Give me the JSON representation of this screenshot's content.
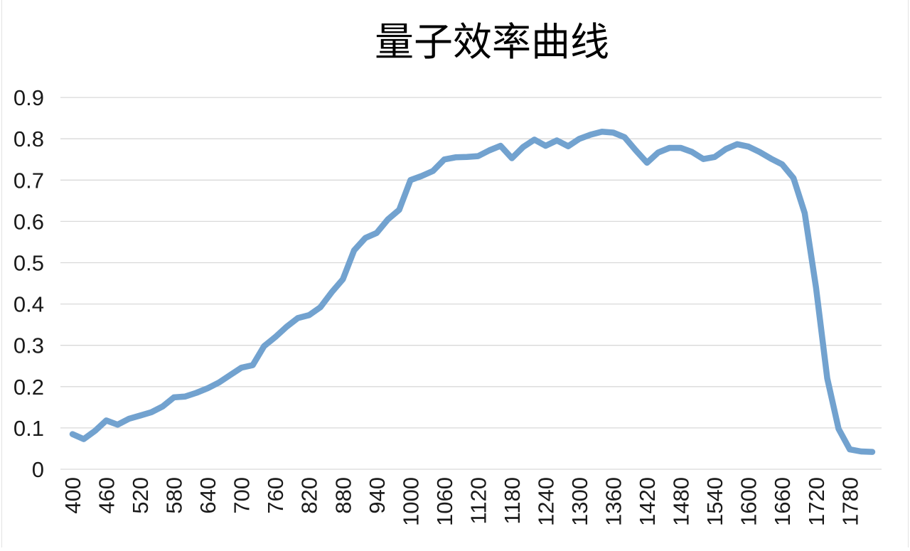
{
  "chart_data": {
    "type": "line",
    "title": "量子效率曲线",
    "xlabel": "",
    "ylabel": "",
    "legend": "none",
    "grid": "horizontal",
    "xlim": [
      400,
      1820
    ],
    "ylim": [
      0,
      0.9
    ],
    "x": [
      400,
      420,
      440,
      460,
      480,
      500,
      520,
      540,
      560,
      580,
      600,
      620,
      640,
      660,
      680,
      700,
      720,
      740,
      760,
      780,
      800,
      820,
      840,
      860,
      880,
      900,
      920,
      940,
      960,
      980,
      1000,
      1020,
      1040,
      1060,
      1080,
      1100,
      1120,
      1140,
      1160,
      1180,
      1200,
      1220,
      1240,
      1260,
      1280,
      1300,
      1320,
      1340,
      1360,
      1380,
      1400,
      1420,
      1440,
      1460,
      1480,
      1500,
      1520,
      1540,
      1560,
      1580,
      1600,
      1620,
      1640,
      1660,
      1680,
      1700,
      1720,
      1740,
      1760,
      1780,
      1800,
      1820
    ],
    "values": [
      0.085,
      0.073,
      0.093,
      0.118,
      0.108,
      0.122,
      0.13,
      0.138,
      0.152,
      0.174,
      0.176,
      0.185,
      0.196,
      0.21,
      0.228,
      0.246,
      0.252,
      0.298,
      0.32,
      0.345,
      0.366,
      0.373,
      0.392,
      0.428,
      0.46,
      0.53,
      0.56,
      0.572,
      0.605,
      0.628,
      0.7,
      0.71,
      0.722,
      0.75,
      0.755,
      0.756,
      0.758,
      0.772,
      0.783,
      0.753,
      0.78,
      0.798,
      0.783,
      0.796,
      0.782,
      0.8,
      0.81,
      0.817,
      0.815,
      0.804,
      0.772,
      0.742,
      0.767,
      0.778,
      0.778,
      0.768,
      0.751,
      0.756,
      0.775,
      0.787,
      0.781,
      0.768,
      0.752,
      0.738,
      0.705,
      0.62,
      0.44,
      0.22,
      0.098,
      0.048,
      0.043,
      0.042
    ],
    "x_tick_labels": [
      "400",
      "460",
      "520",
      "580",
      "640",
      "700",
      "760",
      "820",
      "880",
      "940",
      "1000",
      "1060",
      "1120",
      "1180",
      "1240",
      "1300",
      "1360",
      "1420",
      "1480",
      "1540",
      "1600",
      "1660",
      "1720",
      "1780"
    ],
    "x_tick_values": [
      400,
      460,
      520,
      580,
      640,
      700,
      760,
      820,
      880,
      940,
      1000,
      1060,
      1120,
      1180,
      1240,
      1300,
      1360,
      1420,
      1480,
      1540,
      1600,
      1660,
      1720,
      1780
    ],
    "y_tick_labels": [
      "0",
      "0.1",
      "0.2",
      "0.3",
      "0.4",
      "0.5",
      "0.6",
      "0.7",
      "0.8",
      "0.9"
    ],
    "y_tick_values": [
      0,
      0.1,
      0.2,
      0.3,
      0.4,
      0.5,
      0.6,
      0.7,
      0.8,
      0.9
    ],
    "colors": {
      "line": "#72A2CF",
      "grid": "#D9D9D9",
      "text": "#1A1A1A",
      "title": "#000000",
      "background": "#FFFFFF"
    }
  }
}
